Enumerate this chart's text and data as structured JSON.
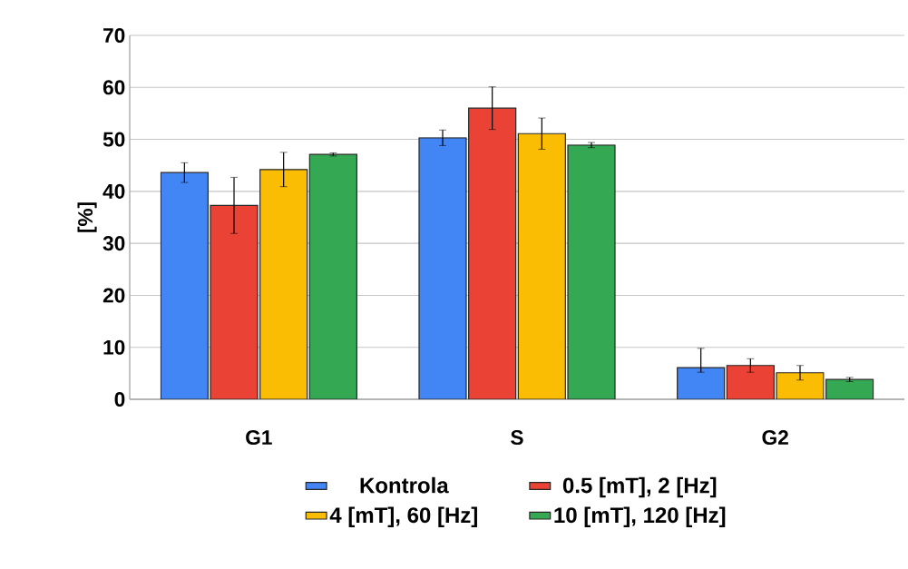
{
  "chart_data": {
    "type": "bar",
    "ylabel": "[%]",
    "categories": [
      "G1",
      "S",
      "G2"
    ],
    "series": [
      {
        "name": "Kontrola",
        "color": "#4285f4",
        "values": [
          43.6,
          50.3,
          6.1
        ],
        "errors": [
          1.9,
          1.5,
          [
            5.2,
            9.8
          ]
        ]
      },
      {
        "name": "0.5 [mT], 2 [Hz]",
        "color": "#ea4335",
        "values": [
          37.3,
          56.0,
          6.5
        ],
        "errors": [
          5.4,
          4.1,
          1.3
        ]
      },
      {
        "name": "4 [mT], 60 [Hz]",
        "color": "#fbbc04",
        "values": [
          44.2,
          51.1,
          5.1
        ],
        "errors": [
          3.3,
          3.0,
          1.4
        ]
      },
      {
        "name": "10 [mT], 120 [Hz]",
        "color": "#34a853",
        "values": [
          47.1,
          48.9,
          3.8
        ],
        "errors": [
          0.3,
          0.5,
          0.4
        ]
      }
    ],
    "ylim": [
      0,
      70
    ],
    "yticks": [
      0,
      10,
      20,
      30,
      40,
      50,
      60,
      70
    ],
    "grid": "y",
    "legend": "bottom"
  }
}
